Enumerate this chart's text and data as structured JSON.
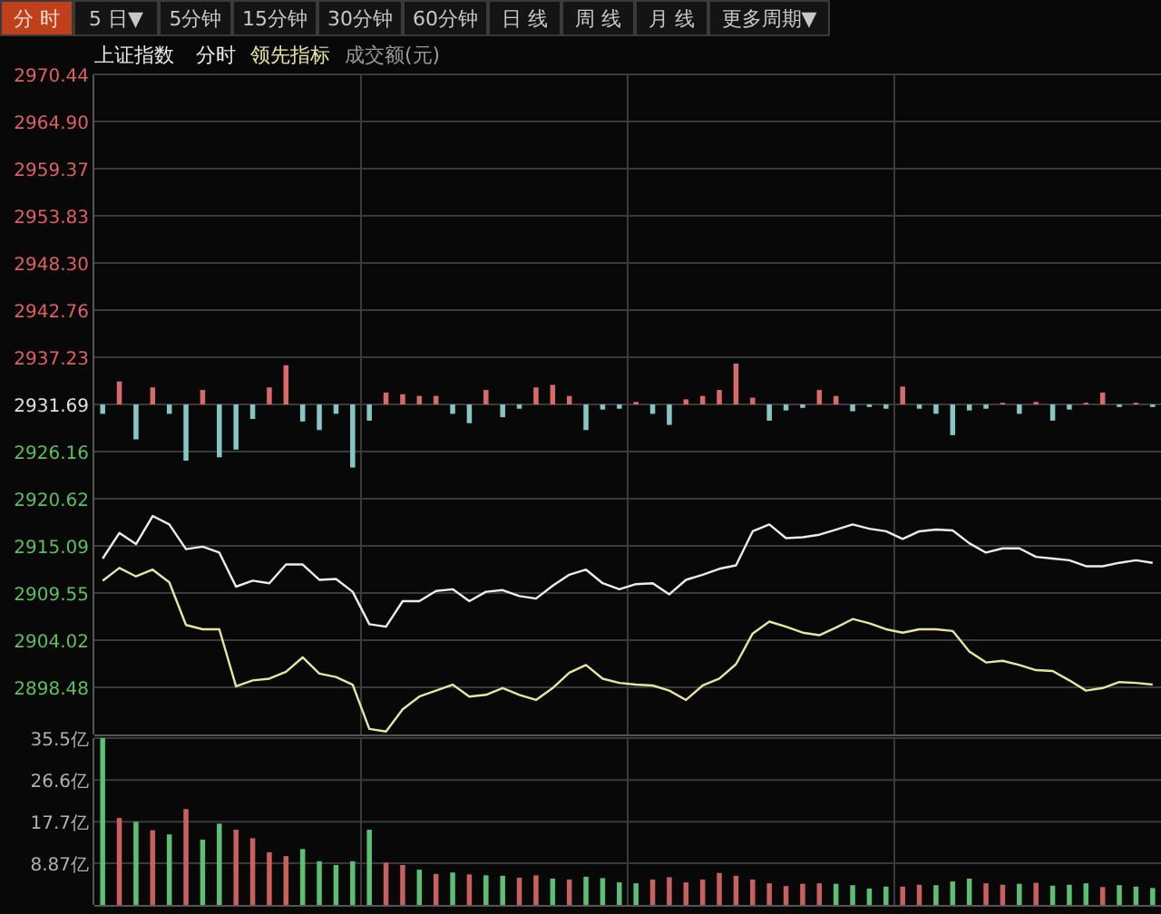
{
  "chart_data": [
    {
      "type": "other",
      "annotations": [
        "分 时",
        "5 日▼",
        "5分钟",
        "15分钟",
        "30分钟",
        "60分钟",
        "日 线",
        "周 线",
        "月 线",
        "更多周期▼"
      ]
    },
    {
      "type": "line",
      "title": "上证指数",
      "annotations": [
        "成交额(元)"
      ],
      "legend": "top left",
      "grid": true,
      "tick_labels": "y",
      "categories": [
        null,
        null,
        null,
        null,
        null,
        null,
        null,
        null,
        null,
        null,
        null,
        null,
        null,
        null,
        null,
        null,
        null,
        null,
        null,
        null,
        null,
        null,
        null,
        null,
        null,
        null,
        null,
        null,
        null,
        null,
        null,
        null,
        null,
        null,
        null,
        null,
        null,
        null,
        null,
        null,
        null,
        null,
        null,
        null,
        null,
        null,
        null,
        null,
        null,
        null,
        null,
        null,
        null,
        null,
        null,
        null,
        null,
        null,
        null,
        null,
        null,
        null,
        null,
        null
      ],
      "ylim": [
        2892.95,
        2970.44
      ],
      "yticks": [
        2970.44,
        {
          "value": 2964.9,
          "label": "2964.90"
        },
        2959.37,
        2953.83,
        {
          "value": 2948.3,
          "label": "2948.30"
        },
        2942.76,
        2937.23,
        2931.69,
        2926.16,
        2920.62,
        2915.09,
        2909.55,
        2904.02,
        2898.48
      ],
      "series": [
        {
          "type": "bar",
          "base": [
            2931.69,
            2931.69,
            2931.69,
            2931.69,
            2931.69,
            2931.69,
            2931.69,
            2931.69,
            2931.69,
            2931.69,
            2931.69,
            2931.69,
            2931.69,
            2931.69,
            2931.69,
            2931.69,
            2931.69,
            2931.69,
            2931.69,
            2931.69,
            2931.69,
            2931.69,
            2931.69,
            2931.69,
            2931.69,
            2931.69,
            2931.69,
            2931.69,
            2931.69,
            2931.69,
            2931.69,
            2931.69,
            2931.69,
            2931.69,
            2931.69,
            2931.69,
            2931.69,
            2931.69,
            2931.69,
            2931.69,
            2931.69,
            2931.69,
            2931.69,
            2931.69,
            2931.69,
            2931.69,
            2931.69,
            2931.69,
            2931.69,
            2931.69,
            2931.69,
            2931.69,
            2931.69,
            2931.69,
            2931.69,
            2931.69,
            2931.69,
            2931.69,
            2931.69,
            2931.69,
            2931.69,
            2931.69,
            2931.69,
            2931.69
          ],
          "values": [
            -1.1,
            2.7,
            -4.1,
            2.0,
            -1.1,
            -6.6,
            1.7,
            -6.2,
            -5.3,
            -1.7,
            2.0,
            4.6,
            -2.0,
            -3.0,
            -1.1,
            -7.4,
            -1.9,
            1.4,
            1.2,
            1.0,
            1.0,
            -1.1,
            -2.2,
            1.7,
            -1.5,
            -0.5,
            2.0,
            2.3,
            1.0,
            -3.0,
            -0.6,
            -0.5,
            0.3,
            -1.1,
            -2.4,
            0.6,
            1.0,
            1.7,
            4.8,
            0.8,
            -1.9,
            -0.7,
            -0.4,
            1.7,
            1.0,
            -0.8,
            -0.3,
            -0.5,
            2.1,
            -0.5,
            -1.1,
            -3.6,
            -0.7,
            -0.5,
            0.2,
            -1.1,
            0.3,
            -1.9,
            -0.6,
            0.2,
            1.4,
            -0.3,
            0.2,
            -0.3
          ],
          "colors": [
            "#86c6c6",
            "#d86a6a",
            "#86c6c6",
            "#d86a6a",
            "#86c6c6",
            "#86c6c6",
            "#d86a6a",
            "#86c6c6",
            "#86c6c6",
            "#86c6c6",
            "#d86a6a",
            "#d86a6a",
            "#86c6c6",
            "#86c6c6",
            "#86c6c6",
            "#86c6c6",
            "#86c6c6",
            "#d86a6a",
            "#d86a6a",
            "#d86a6a",
            "#d86a6a",
            "#86c6c6",
            "#86c6c6",
            "#d86a6a",
            "#86c6c6",
            "#86c6c6",
            "#d86a6a",
            "#d86a6a",
            "#d86a6a",
            "#86c6c6",
            "#86c6c6",
            "#86c6c6",
            "#d86a6a",
            "#86c6c6",
            "#86c6c6",
            "#d86a6a",
            "#d86a6a",
            "#d86a6a",
            "#d86a6a",
            "#d86a6a",
            "#86c6c6",
            "#86c6c6",
            "#86c6c6",
            "#d86a6a",
            "#d86a6a",
            "#86c6c6",
            "#86c6c6",
            "#86c6c6",
            "#d86a6a",
            "#86c6c6",
            "#86c6c6",
            "#86c6c6",
            "#86c6c6",
            "#86c6c6",
            "#d86a6a",
            "#86c6c6",
            "#d86a6a",
            "#86c6c6",
            "#86c6c6",
            "#d86a6a",
            "#d86a6a",
            "#86c6c6",
            "#d86a6a",
            "#86c6c6"
          ]
        },
        {
          "type": "line",
          "name": "分时",
          "color": "#ececec",
          "values": [
            2913.6,
            2916.6,
            2915.3,
            2918.6,
            2917.6,
            2914.7,
            2915.0,
            2914.3,
            2910.3,
            2911.0,
            2910.7,
            2912.9,
            2912.9,
            2911.1,
            2911.2,
            2909.7,
            2905.9,
            2905.6,
            2908.6,
            2908.6,
            2909.8,
            2910.0,
            2908.6,
            2909.7,
            2909.9,
            2909.2,
            2908.9,
            2910.4,
            2911.7,
            2912.3,
            2910.7,
            2910.0,
            2910.6,
            2910.7,
            2909.4,
            2911.1,
            2911.7,
            2912.4,
            2912.8,
            2916.8,
            2917.6,
            2916.0,
            2916.1,
            2916.4,
            2917.0,
            2917.6,
            2917.1,
            2916.8,
            2915.9,
            2916.8,
            2917.0,
            2916.9,
            2915.4,
            2914.3,
            2914.8,
            2914.8,
            2913.8,
            2913.6,
            2913.4,
            2912.7,
            2912.7,
            2913.1,
            2913.4,
            2913.1
          ]
        },
        {
          "type": "line",
          "name": "领先指标",
          "color": "#e6e6a0",
          "values": [
            2911.0,
            2912.5,
            2911.5,
            2912.3,
            2910.8,
            2905.8,
            2905.3,
            2905.3,
            2898.6,
            2899.3,
            2899.5,
            2900.3,
            2902.0,
            2900.1,
            2899.7,
            2898.8,
            2893.6,
            2893.3,
            2895.9,
            2897.4,
            2898.1,
            2898.8,
            2897.4,
            2897.6,
            2898.4,
            2897.6,
            2897.0,
            2898.4,
            2900.2,
            2901.1,
            2899.5,
            2899.0,
            2898.8,
            2898.7,
            2898.1,
            2897.0,
            2898.7,
            2899.5,
            2901.2,
            2904.8,
            2906.2,
            2905.6,
            2904.9,
            2904.6,
            2905.5,
            2906.5,
            2906.0,
            2905.3,
            2904.9,
            2905.3,
            2905.3,
            2905.1,
            2902.7,
            2901.4,
            2901.6,
            2901.1,
            2900.5,
            2900.4,
            2899.3,
            2898.1,
            2898.4,
            2899.1,
            2899.0,
            2898.8
          ]
        }
      ]
    },
    {
      "type": "bar",
      "grid": true,
      "tick_labels": "y",
      "categories": [
        null,
        null,
        null,
        null,
        null,
        null,
        null,
        null,
        null,
        null,
        null,
        null,
        null,
        null,
        null,
        null,
        null,
        null,
        null,
        null,
        null,
        null,
        null,
        null,
        null,
        null,
        null,
        null,
        null,
        null,
        null,
        null,
        null,
        null,
        null,
        null,
        null,
        null,
        null,
        null,
        null,
        null,
        null,
        null,
        null,
        null,
        null,
        null,
        null,
        null,
        null,
        null,
        null,
        null,
        null,
        null,
        null,
        null,
        null,
        null,
        null,
        null,
        null,
        null
      ],
      "ylim": [
        0,
        35.5
      ],
      "yticks": [
        {
          "value": 8.87,
          "label": "8.87亿"
        },
        {
          "value": 17.7,
          "label": "17.7亿"
        },
        {
          "value": 26.6,
          "label": "26.6亿"
        },
        {
          "value": 35.5,
          "label": "35.5亿"
        }
      ],
      "values": [
        35.5,
        18.5,
        17.7,
        15.9,
        15.0,
        20.4,
        13.9,
        17.3,
        16.0,
        14.2,
        11.2,
        10.4,
        11.9,
        9.3,
        8.5,
        9.3,
        16.0,
        9.0,
        8.5,
        7.5,
        6.6,
        6.9,
        6.5,
        6.3,
        6.2,
        5.8,
        6.3,
        5.6,
        5.4,
        6.0,
        5.7,
        4.8,
        4.6,
        5.4,
        5.9,
        4.8,
        5.4,
        6.8,
        6.2,
        5.4,
        4.6,
        4.0,
        4.5,
        4.6,
        4.5,
        4.2,
        3.5,
        3.9,
        3.9,
        4.3,
        4.2,
        5.0,
        5.6,
        4.6,
        4.3,
        4.5,
        4.7,
        4.1,
        4.3,
        4.6,
        3.8,
        4.2,
        3.9,
        3.6
      ],
      "colors": [
        "#5cbf74",
        "#c96060",
        "#5cbf74",
        "#c96060",
        "#5cbf74",
        "#c96060",
        "#5cbf74",
        "#5cbf74",
        "#c96060",
        "#c96060",
        "#c96060",
        "#c96060",
        "#5cbf74",
        "#5cbf74",
        "#5cbf74",
        "#5cbf74",
        "#5cbf74",
        "#c96060",
        "#c96060",
        "#5cbf74",
        "#c96060",
        "#5cbf74",
        "#c96060",
        "#5cbf74",
        "#5cbf74",
        "#c96060",
        "#c96060",
        "#5cbf74",
        "#c96060",
        "#5cbf74",
        "#5cbf74",
        "#5cbf74",
        "#5cbf74",
        "#c96060",
        "#c96060",
        "#c96060",
        "#c96060",
        "#c96060",
        "#c96060",
        "#c96060",
        "#c96060",
        "#c96060",
        "#c96060",
        "#c96060",
        "#5cbf74",
        "#5cbf74",
        "#5cbf74",
        "#5cbf74",
        "#c96060",
        "#c96060",
        "#5cbf74",
        "#5cbf74",
        "#5cbf74",
        "#c96060",
        "#c96060",
        "#5cbf74",
        "#c96060",
        "#5cbf74",
        "#5cbf74",
        "#5cbf74",
        "#c96060",
        "#5cbf74",
        "#5cbf74",
        "#5cbf74"
      ]
    }
  ]
}
